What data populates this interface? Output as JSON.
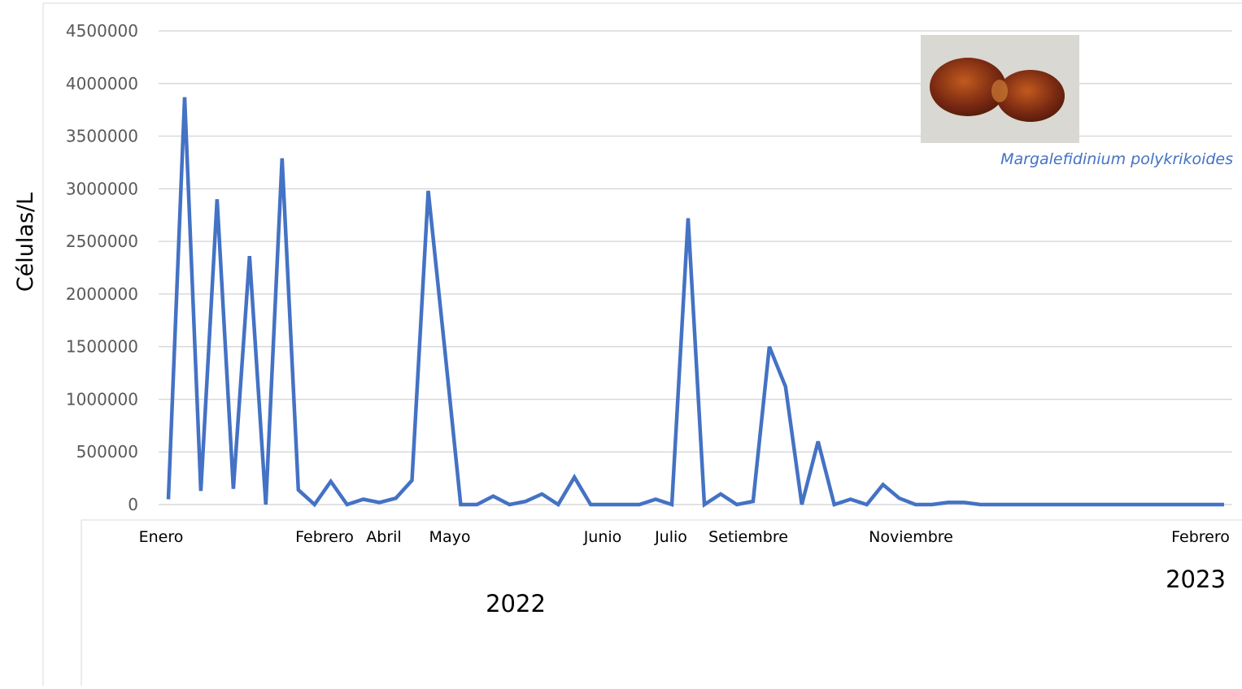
{
  "chart_data": {
    "type": "line",
    "title": "",
    "ylabel": "Células/L",
    "ylim": [
      0,
      4500000
    ],
    "y_ticks": [
      0,
      500000,
      1000000,
      1500000,
      2000000,
      2500000,
      3000000,
      3500000,
      4000000,
      4500000
    ],
    "grid": "horizontal",
    "x_month_labels": [
      "Enero",
      "Febrero",
      "Abril",
      "Mayo",
      "Junio",
      "Julio",
      "Setiembre",
      "Noviembre",
      "Febrero"
    ],
    "year_labels": [
      "2022",
      "2023"
    ],
    "species_label": "Margalefidinium polykrikoides",
    "line_color": "#4472c4",
    "series": [
      {
        "values": [
          50000,
          3870000,
          130000,
          2900000,
          150000,
          2360000,
          0,
          3290000,
          140000,
          0,
          220000,
          0,
          50000,
          20000,
          60000,
          230000,
          2980000,
          1500000,
          0,
          0,
          80000,
          0,
          30000,
          100000,
          0,
          260000,
          0,
          0,
          0,
          0,
          50000,
          0,
          2720000,
          0,
          100000,
          0,
          30000,
          1500000,
          1120000,
          0,
          600000,
          0,
          50000,
          0,
          190000,
          60000,
          0,
          0,
          20000,
          20000,
          0,
          0,
          0,
          0,
          0,
          0,
          0,
          0,
          0,
          0,
          0,
          0,
          0,
          0,
          0,
          0
        ]
      }
    ]
  },
  "inset_image": {
    "name": "dinoflagellate-photo",
    "colors": [
      "#7a2a12",
      "#c25a1e",
      "#d9d8d2"
    ]
  }
}
